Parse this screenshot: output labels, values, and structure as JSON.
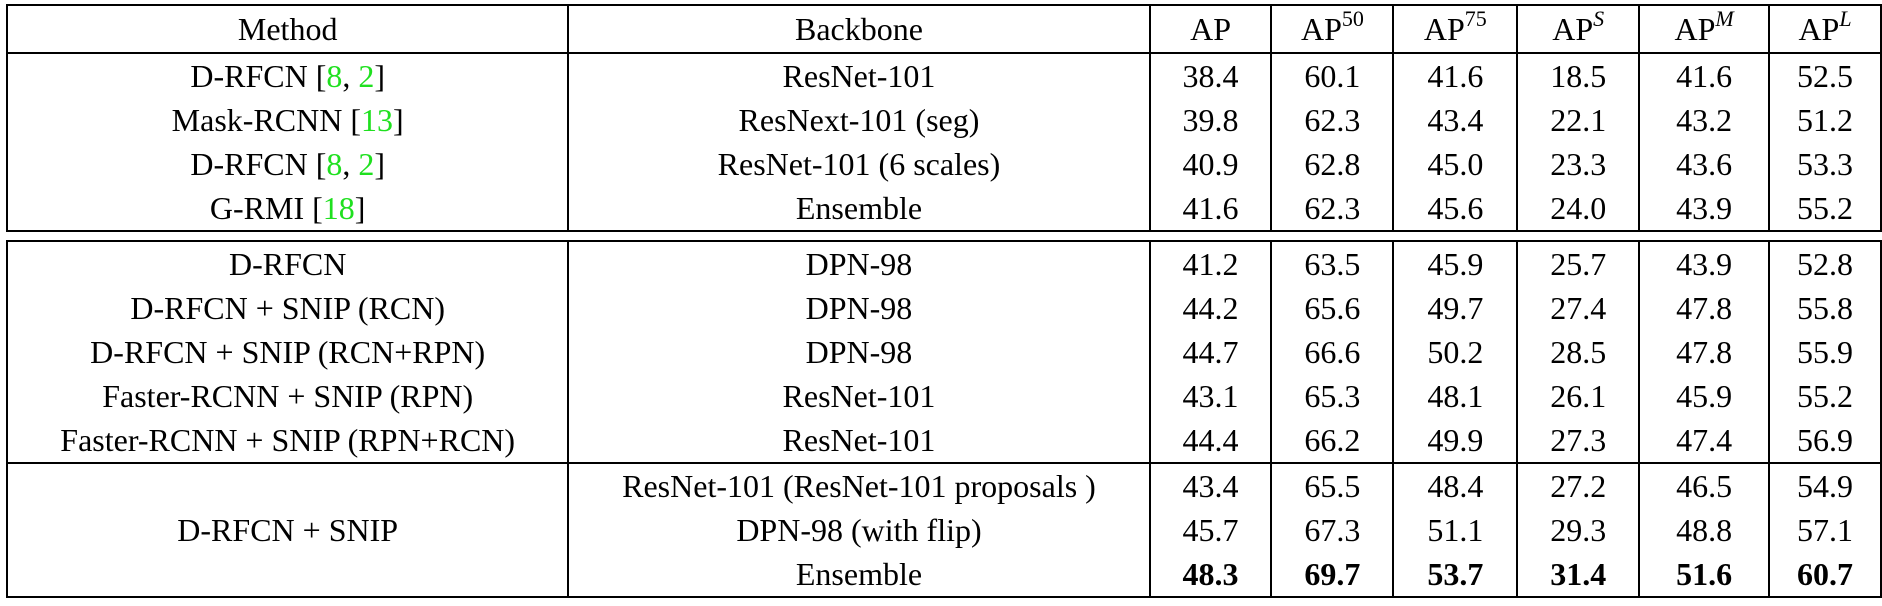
{
  "header": {
    "method": "Method",
    "backbone": "Backbone",
    "ap": "AP",
    "ap_base": "AP",
    "ap50_sup": "50",
    "ap75_sup": "75",
    "aps_sup": "S",
    "apm_sup": "M",
    "apl_sup": "L"
  },
  "section1": [
    {
      "method": "D-RFCN",
      "cites": [
        "8",
        "2"
      ],
      "backbone": "ResNet-101",
      "vals": [
        "38.4",
        "60.1",
        "41.6",
        "18.5",
        "41.6",
        "52.5"
      ]
    },
    {
      "method": "Mask-RCNN",
      "cites": [
        "13"
      ],
      "backbone": "ResNext-101 (seg)",
      "vals": [
        "39.8",
        "62.3",
        "43.4",
        "22.1",
        "43.2",
        "51.2"
      ]
    },
    {
      "method": "D-RFCN",
      "cites": [
        "8",
        "2"
      ],
      "backbone": "ResNet-101 (6 scales)",
      "vals": [
        "40.9",
        "62.8",
        "45.0",
        "23.3",
        "43.6",
        "53.3"
      ]
    },
    {
      "method": "G-RMI",
      "cites": [
        "18"
      ],
      "backbone": "Ensemble",
      "vals": [
        "41.6",
        "62.3",
        "45.6",
        "24.0",
        "43.9",
        "55.2"
      ]
    }
  ],
  "section2": [
    {
      "method": "D-RFCN",
      "backbone": "DPN-98",
      "vals": [
        "41.2",
        "63.5",
        "45.9",
        "25.7",
        "43.9",
        "52.8"
      ]
    },
    {
      "method": "D-RFCN + SNIP (RCN)",
      "backbone": "DPN-98",
      "vals": [
        "44.2",
        "65.6",
        "49.7",
        "27.4",
        "47.8",
        "55.8"
      ]
    },
    {
      "method": "D-RFCN + SNIP (RCN+RPN)",
      "backbone": "DPN-98",
      "vals": [
        "44.7",
        "66.6",
        "50.2",
        "28.5",
        "47.8",
        "55.9"
      ]
    },
    {
      "method": "Faster-RCNN + SNIP (RPN)",
      "backbone": "ResNet-101",
      "vals": [
        "43.1",
        "65.3",
        "48.1",
        "26.1",
        "45.9",
        "55.2"
      ]
    },
    {
      "method": "Faster-RCNN + SNIP (RPN+RCN)",
      "backbone": "ResNet-101",
      "vals": [
        "44.4",
        "66.2",
        "49.9",
        "27.3",
        "47.4",
        "56.9"
      ]
    }
  ],
  "section3": {
    "method": "D-RFCN + SNIP",
    "rows": [
      {
        "backbone": "ResNet-101 (ResNet-101 proposals )",
        "vals": [
          "43.4",
          "65.5",
          "48.4",
          "27.2",
          "46.5",
          "54.9"
        ]
      },
      {
        "backbone": "DPN-98 (with flip)",
        "vals": [
          "45.7",
          "67.3",
          "51.1",
          "29.3",
          "48.8",
          "57.1"
        ]
      },
      {
        "backbone": "Ensemble",
        "vals": [
          "48.3",
          "69.7",
          "53.7",
          "31.4",
          "51.6",
          "60.7"
        ]
      }
    ]
  }
}
